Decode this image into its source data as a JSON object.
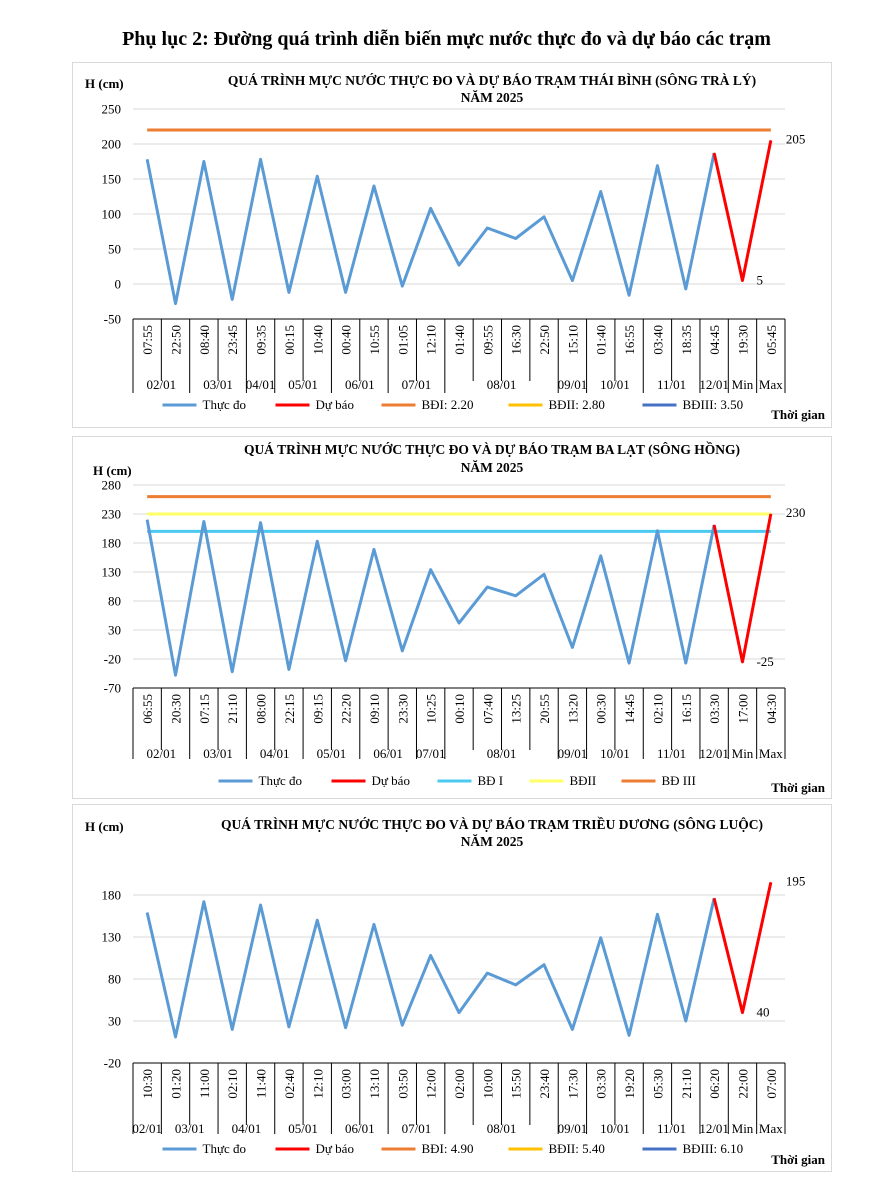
{
  "page_title": "Phụ lục 2: Đường quá trình diễn biến mực nước thực đo và dự báo các trạm",
  "chart_data": [
    {
      "type": "line",
      "title_line1": "QUÁ TRÌNH MỰC NƯỚC THỰC ĐO VÀ DỰ BÁO TRẠM THÁI BÌNH (SÔNG TRÀ LÝ)",
      "title_line2": "NĂM 2025",
      "ylabel": "H (cm)",
      "xlabel": "Thời gian",
      "ylim": [
        -50,
        250
      ],
      "yticks": [
        -50,
        0,
        50,
        100,
        150,
        200,
        250
      ],
      "times": [
        "07:55",
        "22:50",
        "08:40",
        "23:45",
        "09:35",
        "00:15",
        "10:40",
        "00:40",
        "10:55",
        "01:05",
        "12:10",
        "01:40",
        "09:55",
        "16:30",
        "22:50",
        "15:10",
        "01:40",
        "16:55",
        "03:40",
        "18:35",
        "04:45",
        "19:30",
        "05:45"
      ],
      "date_groups": [
        {
          "label": "02/01",
          "start": 0,
          "end": 2
        },
        {
          "label": "03/01",
          "start": 2,
          "end": 4
        },
        {
          "label": "04/01",
          "start": 4,
          "end": 5
        },
        {
          "label": "05/01",
          "start": 5,
          "end": 7
        },
        {
          "label": "06/01",
          "start": 7,
          "end": 9
        },
        {
          "label": "07/01",
          "start": 9,
          "end": 11
        },
        {
          "label": "08/01",
          "start": 11,
          "end": 15
        },
        {
          "label": "09/01",
          "start": 15,
          "end": 16
        },
        {
          "label": "10/01",
          "start": 16,
          "end": 18
        },
        {
          "label": "11/01",
          "start": 18,
          "end": 20
        },
        {
          "label": "12/01",
          "start": 20,
          "end": 21
        },
        {
          "label": "Min",
          "start": 21,
          "end": 22
        },
        {
          "label": "Max",
          "start": 22,
          "end": 23
        }
      ],
      "observed": [
        178,
        -28,
        175,
        -22,
        178,
        -12,
        154,
        -12,
        140,
        -3,
        108,
        27,
        80,
        65,
        96,
        5,
        132,
        -16,
        169,
        -7,
        187
      ],
      "forecast_start_index": 20,
      "forecast": [
        187,
        5,
        205
      ],
      "thresholds": [
        {
          "name": "BĐI: 2.20",
          "value": 220,
          "color": "#ED7D31",
          "draw": true
        },
        {
          "name": "BĐII: 2.80",
          "value": 280,
          "color": "#FFC000",
          "draw": false
        },
        {
          "name": "BĐIII: 3.50",
          "value": 350,
          "color": "#4472C4",
          "draw": false
        }
      ],
      "annotations": [
        {
          "text": "205",
          "index": 22,
          "value": 205
        },
        {
          "text": "5",
          "index": 21,
          "value": 5
        }
      ],
      "legend": {
        "observed": "Thực đo",
        "forecast": "Dự báo"
      },
      "colors": {
        "observed": "#5B9BD5",
        "forecast": "#FF0000"
      }
    },
    {
      "type": "line",
      "title_line1": "QUÁ TRÌNH MỰC NƯỚC THỰC ĐO VÀ DỰ BÁO TRẠM BA LẠT (SÔNG HỒNG)",
      "title_line2": "NĂM 2025",
      "ylabel": "H (cm)",
      "xlabel": "Thời gian",
      "ylim": [
        -70,
        280
      ],
      "yticks": [
        -70,
        -20,
        30,
        80,
        130,
        180,
        230,
        280
      ],
      "times": [
        "06:55",
        "20:30",
        "07:15",
        "21:10",
        "08:00",
        "22:15",
        "09:15",
        "22:20",
        "09:10",
        "23:30",
        "10:25",
        "00:10",
        "07:40",
        "13:25",
        "20:55",
        "13:20",
        "00:30",
        "14:45",
        "02:10",
        "16:15",
        "03:30",
        "17:00",
        "04:30"
      ],
      "date_groups": [
        {
          "label": "02/01",
          "start": 0,
          "end": 2
        },
        {
          "label": "03/01",
          "start": 2,
          "end": 4
        },
        {
          "label": "04/01",
          "start": 4,
          "end": 6
        },
        {
          "label": "05/01",
          "start": 6,
          "end": 8
        },
        {
          "label": "06/01",
          "start": 8,
          "end": 10
        },
        {
          "label": "07/01",
          "start": 10,
          "end": 11
        },
        {
          "label": "08/01",
          "start": 11,
          "end": 15
        },
        {
          "label": "09/01",
          "start": 15,
          "end": 16
        },
        {
          "label": "10/01",
          "start": 16,
          "end": 18
        },
        {
          "label": "11/01",
          "start": 18,
          "end": 20
        },
        {
          "label": "12/01",
          "start": 20,
          "end": 21
        },
        {
          "label": "Min",
          "start": 21,
          "end": 22
        },
        {
          "label": "Max",
          "start": 22,
          "end": 23
        }
      ],
      "observed": [
        220,
        -48,
        217,
        -42,
        215,
        -38,
        183,
        -23,
        169,
        -6,
        134,
        42,
        104,
        89,
        126,
        0,
        158,
        -27,
        201,
        -27,
        211
      ],
      "forecast_start_index": 20,
      "forecast": [
        211,
        -25,
        230
      ],
      "thresholds": [
        {
          "name": "BĐ I",
          "value": 200,
          "color": "#4CC9F0",
          "draw": true
        },
        {
          "name": "BĐII",
          "value": 230,
          "color": "#FFFF66",
          "draw": true
        },
        {
          "name": "BĐ III",
          "value": 260,
          "color": "#ED7D31",
          "draw": true
        }
      ],
      "annotations": [
        {
          "text": "230",
          "index": 22,
          "value": 230
        },
        {
          "text": "-25",
          "index": 21,
          "value": -25
        }
      ],
      "legend": {
        "observed": "Thực đo",
        "forecast": "Dự báo"
      },
      "colors": {
        "observed": "#5B9BD5",
        "forecast": "#FF0000"
      }
    },
    {
      "type": "line",
      "title_line1": "QUÁ TRÌNH MỰC NƯỚC THỰC ĐO VÀ DỰ BÁO TRẠM TRIỀU DƯƠNG (SÔNG LUỘC)",
      "title_line2": "NĂM 2025",
      "ylabel": "H (cm)",
      "xlabel": "Thời gian",
      "ylim": [
        -20,
        230
      ],
      "yticks": [
        -20,
        30,
        80,
        130,
        180
      ],
      "times": [
        "10:30",
        "01:20",
        "11:00",
        "02:10",
        "11:40",
        "02:40",
        "12:10",
        "03:00",
        "13:10",
        "03:50",
        "12:00",
        "02:00",
        "10:00",
        "15:50",
        "23:40",
        "17:30",
        "03:30",
        "19:20",
        "05:30",
        "21:10",
        "06:20",
        "22:00",
        "07:00"
      ],
      "date_groups": [
        {
          "label": "02/01",
          "start": 0,
          "end": 1
        },
        {
          "label": "03/01",
          "start": 1,
          "end": 3
        },
        {
          "label": "04/01",
          "start": 3,
          "end": 5
        },
        {
          "label": "05/01",
          "start": 5,
          "end": 7
        },
        {
          "label": "06/01",
          "start": 7,
          "end": 9
        },
        {
          "label": "07/01",
          "start": 9,
          "end": 11
        },
        {
          "label": "08/01",
          "start": 11,
          "end": 15
        },
        {
          "label": "09/01",
          "start": 15,
          "end": 16
        },
        {
          "label": "10/01",
          "start": 16,
          "end": 18
        },
        {
          "label": "11/01",
          "start": 18,
          "end": 20
        },
        {
          "label": "12/01",
          "start": 20,
          "end": 21
        },
        {
          "label": "Min",
          "start": 21,
          "end": 22
        },
        {
          "label": "Max",
          "start": 22,
          "end": 23
        }
      ],
      "observed": [
        159,
        11,
        172,
        20,
        168,
        23,
        150,
        22,
        145,
        25,
        108,
        40,
        87,
        73,
        97,
        20,
        129,
        13,
        157,
        30,
        176
      ],
      "forecast_start_index": 20,
      "forecast": [
        176,
        40,
        195
      ],
      "thresholds": [
        {
          "name": "BĐI: 4.90",
          "value": 490,
          "color": "#ED7D31",
          "draw": false
        },
        {
          "name": "BĐII: 5.40",
          "value": 540,
          "color": "#FFC000",
          "draw": false
        },
        {
          "name": "BĐIII: 6.10",
          "value": 610,
          "color": "#4472C4",
          "draw": false
        }
      ],
      "annotations": [
        {
          "text": "195",
          "index": 22,
          "value": 195
        },
        {
          "text": "40",
          "index": 21,
          "value": 40
        }
      ],
      "legend": {
        "observed": "Thực đo",
        "forecast": "Dự báo"
      },
      "colors": {
        "observed": "#5B9BD5",
        "forecast": "#FF0000"
      }
    }
  ]
}
